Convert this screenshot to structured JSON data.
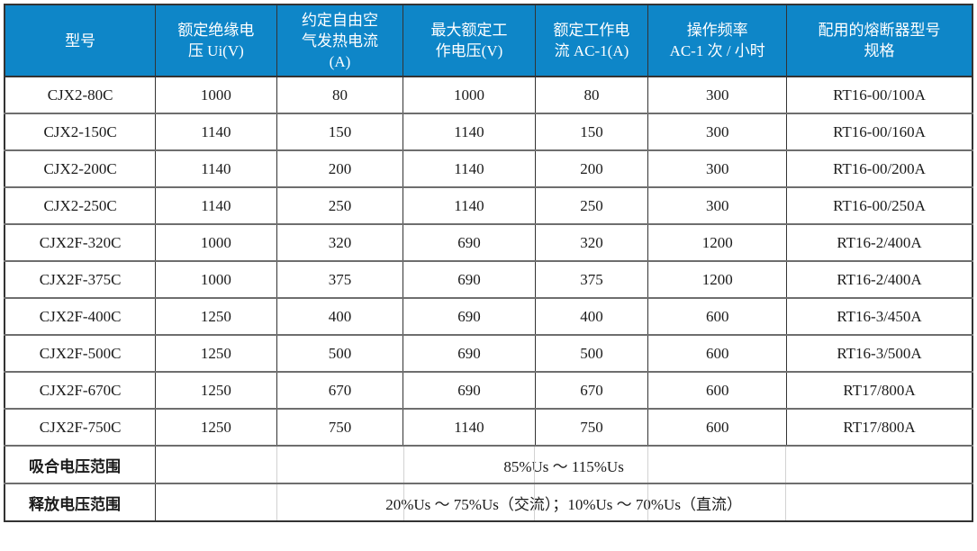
{
  "colors": {
    "header_bg": "#0e86c8",
    "header_text": "#ffffff",
    "body_text": "#1a1a1a",
    "border_dark": "#333333",
    "border_mid": "#6e6e6e",
    "border_faint": "#d2d2d2"
  },
  "table": {
    "columns": [
      {
        "label": "型号"
      },
      {
        "label": "额定绝缘电\n压 Ui(V)"
      },
      {
        "label": "约定自由空\n气发热电流\n(A)"
      },
      {
        "label": "最大额定工\n作电压(V)"
      },
      {
        "label": "额定工作电\n流 AC-1(A)"
      },
      {
        "label": "操作频率\nAC-1 次 / 小时"
      },
      {
        "label": "配用的熔断器型号\n规格"
      }
    ],
    "rows": [
      [
        "CJX2-80C",
        "1000",
        "80",
        "1000",
        "80",
        "300",
        "RT16-00/100A"
      ],
      [
        "CJX2-150C",
        "1140",
        "150",
        "1140",
        "150",
        "300",
        "RT16-00/160A"
      ],
      [
        "CJX2-200C",
        "1140",
        "200",
        "1140",
        "200",
        "300",
        "RT16-00/200A"
      ],
      [
        "CJX2-250C",
        "1140",
        "250",
        "1140",
        "250",
        "300",
        "RT16-00/250A"
      ],
      [
        "CJX2F-320C",
        "1000",
        "320",
        "690",
        "320",
        "1200",
        "RT16-2/400A"
      ],
      [
        "CJX2F-375C",
        "1000",
        "375",
        "690",
        "375",
        "1200",
        "RT16-2/400A"
      ],
      [
        "CJX2F-400C",
        "1250",
        "400",
        "690",
        "400",
        "600",
        "RT16-3/450A"
      ],
      [
        "CJX2F-500C",
        "1250",
        "500",
        "690",
        "500",
        "600",
        "RT16-3/500A"
      ],
      [
        "CJX2F-670C",
        "1250",
        "670",
        "690",
        "670",
        "600",
        "RT17/800A"
      ],
      [
        "CJX2F-750C",
        "1250",
        "750",
        "1140",
        "750",
        "600",
        "RT17/800A"
      ]
    ],
    "footer_rows": [
      {
        "label": "吸合电压范围",
        "value": "85%Us ～ 115%Us"
      },
      {
        "label": "释放电压范围",
        "value": "20%Us ～ 75%Us（交流）；10%Us ～ 70%Us（直流）"
      }
    ]
  }
}
